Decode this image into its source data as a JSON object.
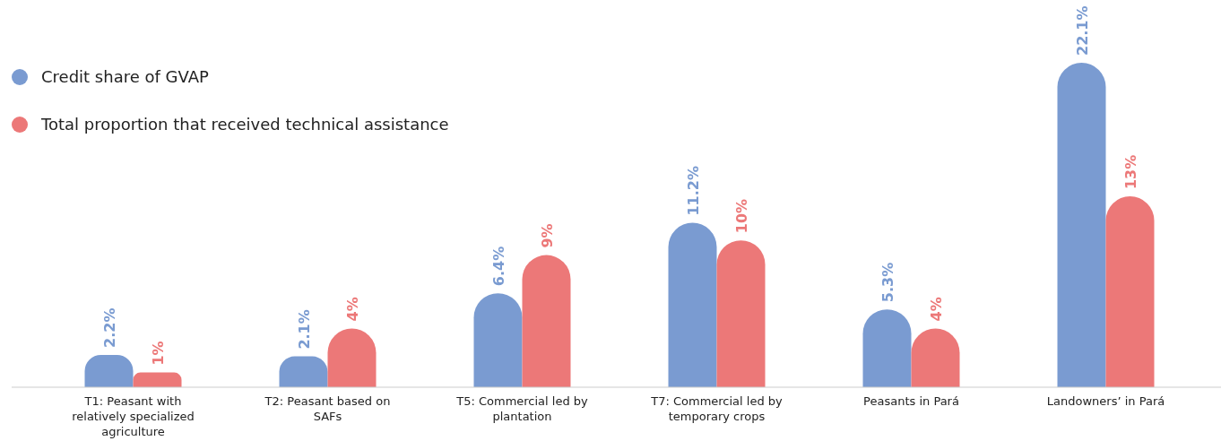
{
  "chart_data": {
    "type": "bar",
    "categories": [
      "T1: Peasant with relatively specialized agriculture",
      "T2: Peasant based on SAFs",
      "T5: Commercial led by plantation",
      "T7: Commercial led by temporary crops",
      "Peasants in Pará",
      "Landowners’ in Pará"
    ],
    "series": [
      {
        "name": "Credit share of GVAP",
        "color": "#7a9bd1",
        "values": [
          2.2,
          2.1,
          6.4,
          11.2,
          5.3,
          22.1
        ],
        "value_labels": [
          "2.2%",
          "2.1%",
          "6.4%",
          "11.2%",
          "5.3%",
          "22.1%"
        ]
      },
      {
        "name": "Total proportion that received technical assistance",
        "color": "#ec7878",
        "values": [
          1,
          4,
          9,
          10,
          4,
          13
        ],
        "value_labels": [
          "1%",
          "4%",
          "9%",
          "10%",
          "4%",
          "13%"
        ]
      }
    ],
    "tick_labels": "x",
    "legend": "top left"
  }
}
